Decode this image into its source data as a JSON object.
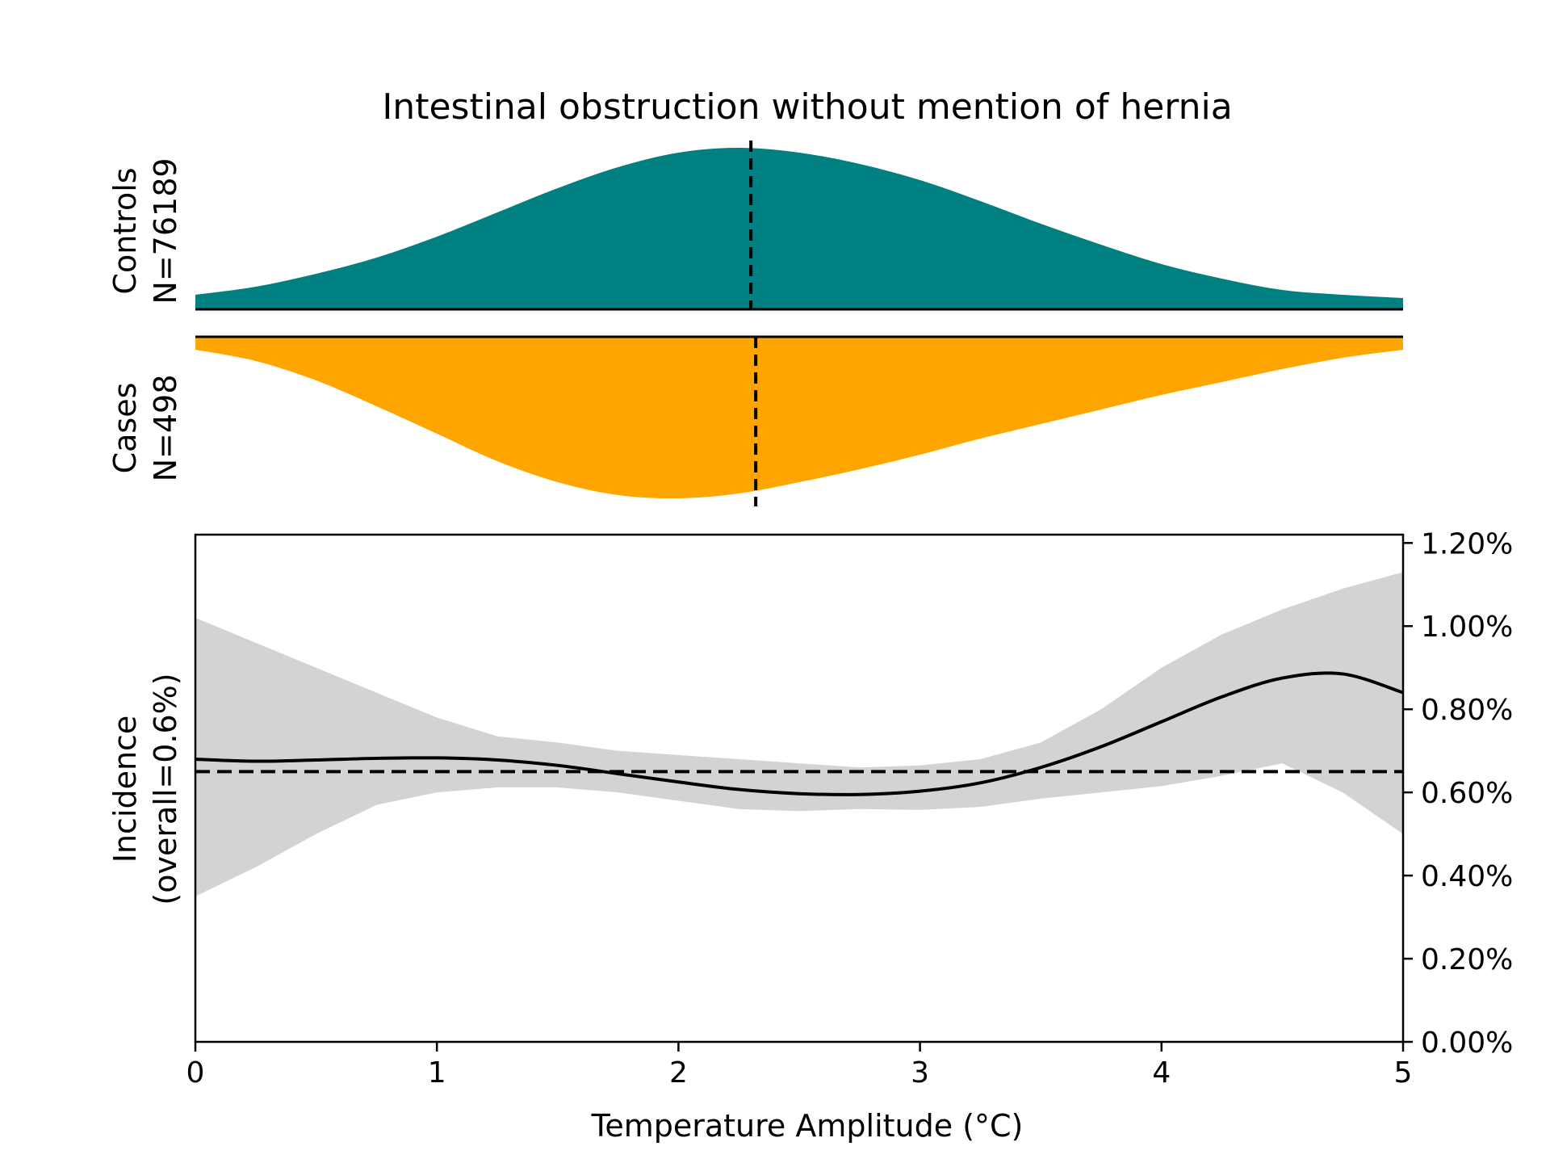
{
  "chart_data": {
    "type": "area",
    "title": "Intestinal obstruction without mention of hernia",
    "xlabel": "Temperature Amplitude (°C)",
    "xlim": [
      0,
      5
    ],
    "xticks": [
      0,
      1,
      2,
      3,
      4,
      5
    ],
    "xtick_labels": [
      "0",
      "1",
      "2",
      "3",
      "4",
      "5"
    ],
    "colors": {
      "controls": "#008080",
      "cases": "#FFA500",
      "ci_band": "#D3D3D3",
      "line": "#000000"
    },
    "density_panels": {
      "controls": {
        "ylabel_line1": "Controls",
        "ylabel_line2": "N=76189",
        "median_x": 2.3,
        "x": [
          0,
          0.25,
          0.5,
          0.75,
          1.0,
          1.25,
          1.5,
          1.75,
          2.0,
          2.25,
          2.5,
          2.75,
          3.0,
          3.25,
          3.5,
          3.75,
          4.0,
          4.25,
          4.5,
          4.75,
          5.0
        ],
        "density": [
          0.09,
          0.14,
          0.22,
          0.32,
          0.45,
          0.6,
          0.75,
          0.88,
          0.97,
          1.0,
          0.97,
          0.9,
          0.8,
          0.67,
          0.53,
          0.4,
          0.28,
          0.19,
          0.12,
          0.09,
          0.07
        ]
      },
      "cases": {
        "ylabel_line1": "Cases",
        "ylabel_line2": "N=498",
        "median_x": 2.32,
        "x": [
          0,
          0.25,
          0.5,
          0.75,
          1.0,
          1.25,
          1.5,
          1.75,
          2.0,
          2.25,
          2.5,
          2.75,
          3.0,
          3.25,
          3.5,
          3.75,
          4.0,
          4.25,
          4.5,
          4.75,
          5.0
        ],
        "density": [
          0.08,
          0.15,
          0.27,
          0.43,
          0.6,
          0.77,
          0.9,
          0.98,
          1.0,
          0.97,
          0.9,
          0.82,
          0.73,
          0.63,
          0.54,
          0.45,
          0.36,
          0.28,
          0.2,
          0.13,
          0.08
        ]
      }
    },
    "incidence_panel": {
      "ylabel_line1": "Incidence",
      "ylabel_line2": "(overall=0.6%)",
      "ylim": [
        0,
        1.22
      ],
      "yticks": [
        0,
        0.2,
        0.4,
        0.6,
        0.8,
        1.0,
        1.2
      ],
      "ytick_labels": [
        "0.00%",
        "0.20%",
        "0.40%",
        "0.60%",
        "0.80%",
        "1.00%",
        "1.20%"
      ],
      "overall_rate": 0.65,
      "x": [
        0,
        0.25,
        0.5,
        0.75,
        1.0,
        1.25,
        1.5,
        1.75,
        2.0,
        2.25,
        2.5,
        2.75,
        3.0,
        3.25,
        3.5,
        3.75,
        4.0,
        4.25,
        4.5,
        4.75,
        5.0
      ],
      "incidence": [
        0.68,
        0.675,
        0.678,
        0.682,
        0.683,
        0.678,
        0.665,
        0.645,
        0.625,
        0.607,
        0.597,
        0.595,
        0.603,
        0.623,
        0.66,
        0.71,
        0.77,
        0.83,
        0.875,
        0.885,
        0.84
      ],
      "ci_upper": [
        1.02,
        0.96,
        0.9,
        0.84,
        0.78,
        0.735,
        0.72,
        0.7,
        0.69,
        0.68,
        0.67,
        0.66,
        0.665,
        0.68,
        0.72,
        0.8,
        0.9,
        0.98,
        1.04,
        1.09,
        1.13
      ],
      "ci_lower": [
        0.35,
        0.42,
        0.5,
        0.57,
        0.6,
        0.612,
        0.612,
        0.6,
        0.58,
        0.56,
        0.555,
        0.56,
        0.558,
        0.565,
        0.585,
        0.6,
        0.615,
        0.64,
        0.67,
        0.6,
        0.5
      ]
    }
  }
}
